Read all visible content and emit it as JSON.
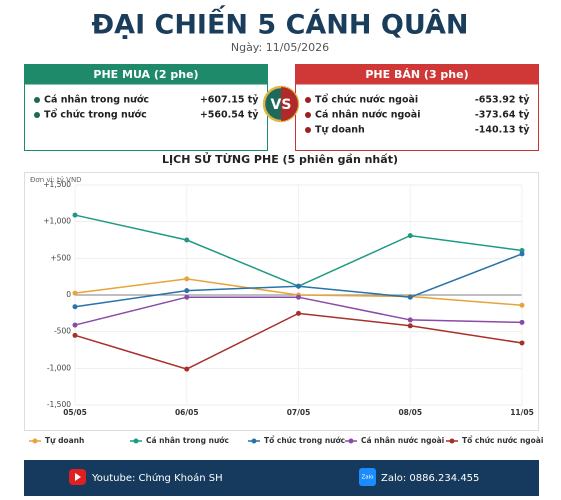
{
  "header": {
    "title": "ĐẠI CHIẾN 5 CÁNH QUÂN",
    "date": "Ngày: 11/05/2026"
  },
  "panels": {
    "buy": {
      "title": "PHE MUA  (2 phe)",
      "items": [
        [
          "Cá nhân trong nước",
          "+607.15 tỷ"
        ],
        [
          "Tổ chức trong nước",
          "+560.54 tỷ"
        ]
      ]
    },
    "vs": "VS",
    "sell": {
      "title": "PHE BÁN  (3 phe)",
      "items": [
        [
          "Tổ chức nước ngoài",
          "-653.92 tỷ"
        ],
        [
          "Cá nhân nước ngoài",
          "-373.64 tỷ"
        ],
        [
          "Tự doanh",
          "-140.13 tỷ"
        ]
      ]
    }
  },
  "chart_data": {
    "type": "line",
    "title": "LỊCH SỬ TỪNG PHE (5 phiên gần nhất)",
    "unit": "Đơn vị: tỷ VND",
    "categories": [
      "05/05",
      "06/05",
      "07/05",
      "08/05",
      "11/05"
    ],
    "series": [
      {
        "name": "Tự doanh",
        "color": "#e8a33a",
        "values": [
          25,
          220,
          0,
          -20,
          -140.13
        ]
      },
      {
        "name": "Cá nhân trong nước",
        "color": "#1e9a82",
        "values": [
          1090,
          750,
          120,
          810,
          607.15
        ]
      },
      {
        "name": "Tổ chức trong nước",
        "color": "#2a72a8",
        "values": [
          -160,
          60,
          120,
          -30,
          560.54
        ]
      },
      {
        "name": "Cá nhân nước ngoài",
        "color": "#8a4aa8",
        "values": [
          -410,
          -30,
          -30,
          -340,
          -373.64
        ]
      },
      {
        "name": "Tổ chức nước ngoài",
        "color": "#a8302a",
        "values": [
          -550,
          -1010,
          -250,
          -420,
          -653.92
        ]
      }
    ],
    "ylim": [
      -1500,
      1500
    ],
    "yticks": [
      {
        "value": 1500,
        "label": "+1,500"
      },
      {
        "value": 1000,
        "label": "+1,000"
      },
      {
        "value": 500,
        "label": "+500"
      },
      0,
      {
        "value": -500,
        "label": "-500"
      },
      {
        "value": -1000,
        "label": "-1,000"
      },
      {
        "value": -1500,
        "label": "-1,500"
      }
    ],
    "grid": true,
    "legend": "bottom"
  },
  "footer": {
    "youtube": "Youtube: Chứng Khoán SH",
    "zalo_icon": "Zalo",
    "zalo": "Zalo: 0886.234.455"
  }
}
